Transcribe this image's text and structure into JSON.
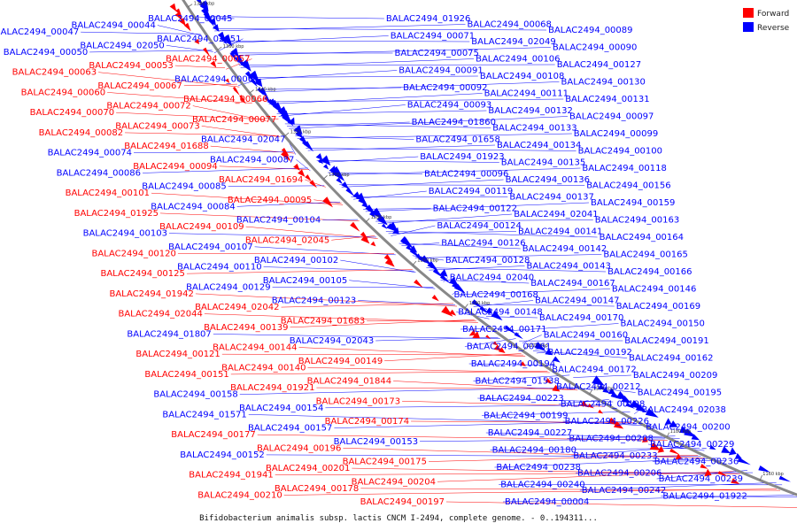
{
  "colors": {
    "forward": "#ff0000",
    "reverse": "#0000ff",
    "backbone": "#888888"
  },
  "legend": [
    {
      "key": "forward",
      "label": "Forward"
    },
    {
      "key": "reverse",
      "label": "Reverse"
    }
  ],
  "caption": "Bifidobacterium animalis subsp. lactis CNCM I-2494, complete genome. - 0..194311...",
  "ticks": [
    "1380 kbp",
    "1360 kbp",
    "1340 kbp",
    "1320 kbp",
    "1300 kbp",
    "1280 kbp",
    "1260 kbp",
    "1240 kbp",
    "1220 kbp",
    "1200 kbp",
    "1180 kbp",
    "1160 kbp",
    "1140 kbp"
  ],
  "left_labels": [
    {
      "t": "BALAC2494_00045",
      "s": "reverse"
    },
    {
      "t": "BALAC2494_00044",
      "s": "reverse"
    },
    {
      "t": "BALAC2494_00047",
      "s": "reverse"
    },
    {
      "t": "BALAC2494_02051",
      "s": "reverse"
    },
    {
      "t": "BALAC2494_02050",
      "s": "reverse"
    },
    {
      "t": "BALAC2494_00050",
      "s": "reverse"
    },
    {
      "t": "BALAC2494_00057",
      "s": "forward"
    },
    {
      "t": "BALAC2494_00053",
      "s": "forward"
    },
    {
      "t": "BALAC2494_00063",
      "s": "forward"
    },
    {
      "t": "BALAC2494_00061",
      "s": "reverse"
    },
    {
      "t": "BALAC2494_00067",
      "s": "forward"
    },
    {
      "t": "BALAC2494_00060",
      "s": "forward"
    },
    {
      "t": "BALAC2494_00066",
      "s": "forward"
    },
    {
      "t": "BALAC2494_00072",
      "s": "forward"
    },
    {
      "t": "BALAC2494_00070",
      "s": "forward"
    },
    {
      "t": "BALAC2494_00077",
      "s": "forward"
    },
    {
      "t": "BALAC2494_00073",
      "s": "forward"
    },
    {
      "t": "BALAC2494_00082",
      "s": "forward"
    },
    {
      "t": "BALAC2494_02047",
      "s": "reverse"
    },
    {
      "t": "BALAC2494_01688",
      "s": "forward"
    },
    {
      "t": "BALAC2494_00074",
      "s": "reverse"
    },
    {
      "t": "BALAC2494_00087",
      "s": "reverse"
    },
    {
      "t": "BALAC2494_00094",
      "s": "forward"
    },
    {
      "t": "BALAC2494_00086",
      "s": "reverse"
    },
    {
      "t": "BALAC2494_01694",
      "s": "forward"
    },
    {
      "t": "BALAC2494_00085",
      "s": "reverse"
    },
    {
      "t": "BALAC2494_00101",
      "s": "forward"
    },
    {
      "t": "BALAC2494_00095",
      "s": "forward"
    },
    {
      "t": "BALAC2494_00084",
      "s": "reverse"
    },
    {
      "t": "BALAC2494_01925",
      "s": "forward"
    },
    {
      "t": "BALAC2494_00104",
      "s": "reverse"
    },
    {
      "t": "BALAC2494_00109",
      "s": "forward"
    },
    {
      "t": "BALAC2494_00103",
      "s": "reverse"
    },
    {
      "t": "BALAC2494_02045",
      "s": "forward"
    },
    {
      "t": "BALAC2494_00107",
      "s": "reverse"
    },
    {
      "t": "BALAC2494_00120",
      "s": "forward"
    },
    {
      "t": "BALAC2494_00102",
      "s": "reverse"
    },
    {
      "t": "BALAC2494_00110",
      "s": "reverse"
    },
    {
      "t": "BALAC2494_00125",
      "s": "forward"
    },
    {
      "t": "BALAC2494_00105",
      "s": "reverse"
    },
    {
      "t": "BALAC2494_00129",
      "s": "reverse"
    },
    {
      "t": "BALAC2494_01942",
      "s": "forward"
    },
    {
      "t": "BALAC2494_00123",
      "s": "reverse"
    },
    {
      "t": "BALAC2494_02042",
      "s": "forward"
    },
    {
      "t": "BALAC2494_02044",
      "s": "forward"
    },
    {
      "t": "BALAC2494_01683",
      "s": "forward"
    },
    {
      "t": "BALAC2494_00139",
      "s": "forward"
    },
    {
      "t": "BALAC2494_01807",
      "s": "reverse"
    },
    {
      "t": "BALAC2494_02043",
      "s": "reverse"
    },
    {
      "t": "BALAC2494_00144",
      "s": "forward"
    },
    {
      "t": "BALAC2494_00121",
      "s": "forward"
    },
    {
      "t": "BALAC2494_00149",
      "s": "forward"
    },
    {
      "t": "BALAC2494_00140",
      "s": "forward"
    },
    {
      "t": "BALAC2494_00151",
      "s": "forward"
    },
    {
      "t": "BALAC2494_01844",
      "s": "forward"
    },
    {
      "t": "BALAC2494_01921",
      "s": "forward"
    },
    {
      "t": "BALAC2494_00158",
      "s": "reverse"
    },
    {
      "t": "BALAC2494_00173",
      "s": "forward"
    },
    {
      "t": "BALAC2494_00154",
      "s": "reverse"
    },
    {
      "t": "BALAC2494_01571",
      "s": "reverse"
    },
    {
      "t": "BALAC2494_00174",
      "s": "forward"
    },
    {
      "t": "BALAC2494_00157",
      "s": "reverse"
    },
    {
      "t": "BALAC2494_00177",
      "s": "forward"
    },
    {
      "t": "BALAC2494_00153",
      "s": "reverse"
    },
    {
      "t": "BALAC2494_00196",
      "s": "forward"
    },
    {
      "t": "BALAC2494_00152",
      "s": "reverse"
    },
    {
      "t": "BALAC2494_00175",
      "s": "forward"
    },
    {
      "t": "BALAC2494_00201",
      "s": "forward"
    },
    {
      "t": "BALAC2494_01941",
      "s": "forward"
    },
    {
      "t": "BALAC2494_00204",
      "s": "forward"
    },
    {
      "t": "BALAC2494_00178",
      "s": "forward"
    },
    {
      "t": "BALAC2494_00210",
      "s": "forward"
    },
    {
      "t": "BALAC2494_00197",
      "s": "forward"
    }
  ],
  "right_labels": [
    {
      "t": "BALAC2494_01926",
      "s": "reverse"
    },
    {
      "t": "BALAC2494_00068",
      "s": "reverse"
    },
    {
      "t": "BALAC2494_00089",
      "s": "reverse"
    },
    {
      "t": "BALAC2494_00071",
      "s": "reverse"
    },
    {
      "t": "BALAC2494_02049",
      "s": "reverse"
    },
    {
      "t": "BALAC2494_00090",
      "s": "reverse"
    },
    {
      "t": "BALAC2494_00075",
      "s": "reverse"
    },
    {
      "t": "BALAC2494_00106",
      "s": "reverse"
    },
    {
      "t": "BALAC2494_00127",
      "s": "reverse"
    },
    {
      "t": "BALAC2494_00091",
      "s": "reverse"
    },
    {
      "t": "BALAC2494_00108",
      "s": "reverse"
    },
    {
      "t": "BALAC2494_00130",
      "s": "reverse"
    },
    {
      "t": "BALAC2494_00092",
      "s": "reverse"
    },
    {
      "t": "BALAC2494_00111",
      "s": "reverse"
    },
    {
      "t": "BALAC2494_00131",
      "s": "reverse"
    },
    {
      "t": "BALAC2494_00093",
      "s": "reverse"
    },
    {
      "t": "BALAC2494_00132",
      "s": "reverse"
    },
    {
      "t": "BALAC2494_00097",
      "s": "reverse"
    },
    {
      "t": "BALAC2494_01860",
      "s": "reverse"
    },
    {
      "t": "BALAC2494_00133",
      "s": "reverse"
    },
    {
      "t": "BALAC2494_00099",
      "s": "reverse"
    },
    {
      "t": "BALAC2494_01658",
      "s": "reverse"
    },
    {
      "t": "BALAC2494_00134",
      "s": "reverse"
    },
    {
      "t": "BALAC2494_00100",
      "s": "reverse"
    },
    {
      "t": "BALAC2494_01923",
      "s": "reverse"
    },
    {
      "t": "BALAC2494_00135",
      "s": "reverse"
    },
    {
      "t": "BALAC2494_00118",
      "s": "reverse"
    },
    {
      "t": "BALAC2494_00096",
      "s": "reverse"
    },
    {
      "t": "BALAC2494_00136",
      "s": "reverse"
    },
    {
      "t": "BALAC2494_00156",
      "s": "reverse"
    },
    {
      "t": "BALAC2494_00119",
      "s": "reverse"
    },
    {
      "t": "BALAC2494_00137",
      "s": "reverse"
    },
    {
      "t": "BALAC2494_00159",
      "s": "reverse"
    },
    {
      "t": "BALAC2494_00122",
      "s": "reverse"
    },
    {
      "t": "BALAC2494_02041",
      "s": "reverse"
    },
    {
      "t": "BALAC2494_00163",
      "s": "reverse"
    },
    {
      "t": "BALAC2494_00124",
      "s": "reverse"
    },
    {
      "t": "BALAC2494_00141",
      "s": "reverse"
    },
    {
      "t": "BALAC2494_00164",
      "s": "reverse"
    },
    {
      "t": "BALAC2494_00126",
      "s": "reverse"
    },
    {
      "t": "BALAC2494_00142",
      "s": "reverse"
    },
    {
      "t": "BALAC2494_00165",
      "s": "reverse"
    },
    {
      "t": "BALAC2494_00128",
      "s": "reverse"
    },
    {
      "t": "BALAC2494_00143",
      "s": "reverse"
    },
    {
      "t": "BALAC2494_00166",
      "s": "reverse"
    },
    {
      "t": "BALAC2494_02040",
      "s": "reverse"
    },
    {
      "t": "BALAC2494_00167",
      "s": "reverse"
    },
    {
      "t": "BALAC2494_00146",
      "s": "reverse"
    },
    {
      "t": "BALAC2494_00168",
      "s": "reverse"
    },
    {
      "t": "BALAC2494_00147",
      "s": "reverse"
    },
    {
      "t": "BALAC2494_00169",
      "s": "reverse"
    },
    {
      "t": "BALAC2494_00148",
      "s": "reverse"
    },
    {
      "t": "BALAC2494_00170",
      "s": "reverse"
    },
    {
      "t": "BALAC2494_00150",
      "s": "reverse"
    },
    {
      "t": "BALAC2494_00171",
      "s": "reverse"
    },
    {
      "t": "BALAC2494_00160",
      "s": "reverse"
    },
    {
      "t": "BALAC2494_00191",
      "s": "reverse"
    },
    {
      "t": "BALAC2494_00161",
      "s": "reverse"
    },
    {
      "t": "BALAC2494_00192",
      "s": "reverse"
    },
    {
      "t": "BALAC2494_00162",
      "s": "reverse"
    },
    {
      "t": "BALAC2494_00194",
      "s": "reverse"
    },
    {
      "t": "BALAC2494_00172",
      "s": "reverse"
    },
    {
      "t": "BALAC2494_00209",
      "s": "reverse"
    },
    {
      "t": "BALAC2494_01538",
      "s": "reverse"
    },
    {
      "t": "BALAC2494_00212",
      "s": "reverse"
    },
    {
      "t": "BALAC2494_00195",
      "s": "reverse"
    },
    {
      "t": "BALAC2494_00223",
      "s": "reverse"
    },
    {
      "t": "BALAC2494_00198",
      "s": "reverse"
    },
    {
      "t": "BALAC2494_02038",
      "s": "reverse"
    },
    {
      "t": "BALAC2494_00199",
      "s": "reverse"
    },
    {
      "t": "BALAC2494_00226",
      "s": "reverse"
    },
    {
      "t": "BALAC2494_00200",
      "s": "reverse"
    },
    {
      "t": "BALAC2494_00227",
      "s": "reverse"
    },
    {
      "t": "BALAC2494_00208",
      "s": "reverse"
    },
    {
      "t": "BALAC2494_00229",
      "s": "reverse"
    },
    {
      "t": "BALAC2494_00180",
      "s": "reverse"
    },
    {
      "t": "BALAC2494_00233",
      "s": "reverse"
    },
    {
      "t": "BALAC2494_00236",
      "s": "reverse"
    },
    {
      "t": "BALAC2494_00238",
      "s": "reverse"
    },
    {
      "t": "BALAC2494_00206",
      "s": "reverse"
    },
    {
      "t": "BALAC2494_00239",
      "s": "reverse"
    },
    {
      "t": "BALAC2494_00240",
      "s": "reverse"
    },
    {
      "t": "BALAC2494_00242",
      "s": "reverse"
    },
    {
      "t": "BALAC2494_01922",
      "s": "reverse"
    },
    {
      "t": "BALAC2494_00004",
      "s": "reverse"
    }
  ]
}
